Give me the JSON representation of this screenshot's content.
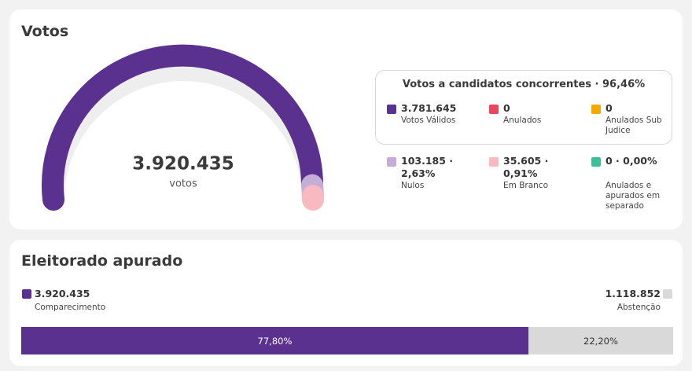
{
  "votes": {
    "title": "Votos",
    "total": {
      "value": 3920435,
      "label": "3.920.435"
    },
    "total_unit": "votos",
    "box_title": "Votos a candidatos concorrentes · 96,46%",
    "items": [
      {
        "value": {
          "value": 3781645,
          "label": "3.781.645"
        },
        "label": "Votos Válidos",
        "color": "#5b3190"
      },
      {
        "value": {
          "value": 0,
          "label": "0"
        },
        "label": "Anulados",
        "color": "#e8475c"
      },
      {
        "value": {
          "value": 0,
          "label": "0"
        },
        "label": "Anulados Sub Judice",
        "color": "#f2a900"
      },
      {
        "value": {
          "value": 103185,
          "label": "103.185 · 2,63%"
        },
        "label": "Nulos",
        "color": "#c4aed8"
      },
      {
        "value": {
          "value": 35605,
          "label": "35.605 · 0,91%"
        },
        "label": "Em Branco",
        "color": "#f8b9c0"
      },
      {
        "value": {
          "value": 0,
          "label": "0 · 0,00%"
        },
        "label": "Anulados e apurados em separado",
        "color": "#3dbf9a"
      }
    ]
  },
  "electorate": {
    "title": "Eleitorado apurado",
    "present": {
      "value": 3920435,
      "label": "3.920.435"
    },
    "present_label": "Comparecimento",
    "present_color": "#5b3190",
    "absent": {
      "value": 1118852,
      "label": "1.118.852"
    },
    "absent_label": "Abstenção",
    "absent_color": "#d9d9d9",
    "bar": [
      {
        "value": 77.8,
        "label": "77,80%",
        "color": "#5b3190",
        "text_color": "#ffffff"
      },
      {
        "value": 22.2,
        "label": "22,20%",
        "color": "#d9d9d9",
        "text_color": "#333333"
      }
    ]
  }
}
